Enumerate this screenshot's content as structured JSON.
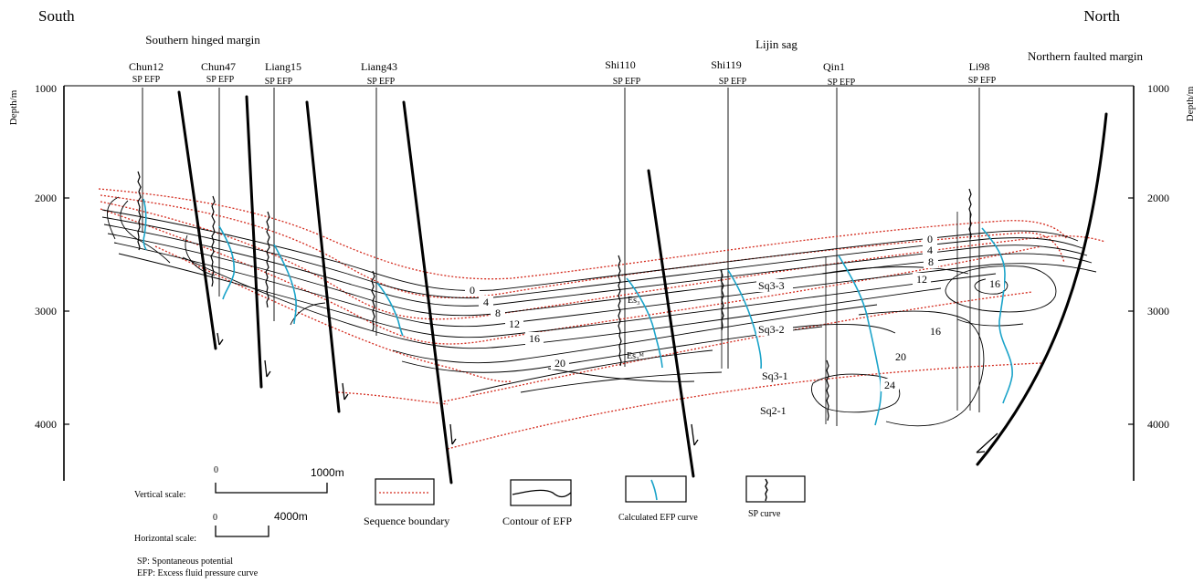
{
  "directions": {
    "left": "South",
    "right": "North"
  },
  "regions": {
    "southern": "Southern hinged margin",
    "lijin": "Lijin sag",
    "northern": "Northern faulted margin"
  },
  "wells": [
    {
      "name": "Chun12",
      "curves": "SP  EFP"
    },
    {
      "name": "Chun47",
      "curves": "SP  EFP"
    },
    {
      "name": "Liang15",
      "curves": "SP  EFP"
    },
    {
      "name": "Liang43",
      "curves": "SP  EFP"
    },
    {
      "name": "Shi110",
      "curves": "SP  EFP"
    },
    {
      "name": "Shi119",
      "curves": "SP  EFP"
    },
    {
      "name": "Qin1",
      "curves": "SP  EFP"
    },
    {
      "name": "Li98",
      "curves": "SP  EFP"
    }
  ],
  "axis": {
    "label": "Depth/m",
    "ticks": [
      "1000",
      "2000",
      "3000",
      "4000"
    ]
  },
  "contour_labels": [
    "0",
    "4",
    "8",
    "12",
    "16",
    "20",
    "0",
    "4",
    "8",
    "12",
    "16",
    "16",
    "20",
    "24"
  ],
  "sequences": [
    "Sq3-3",
    "Sq3-2",
    "Sq3-1",
    "Sq2-1"
  ],
  "formation_labels": [
    "Es₃",
    "Es₃ᴹ"
  ],
  "scales": {
    "vertical_label": "Vertical scale:",
    "vertical_zero": "0",
    "vertical_value": "1000m",
    "horizontal_label": "Horizontal scale:",
    "horizontal_zero": "0",
    "horizontal_value": "4000m"
  },
  "legend": {
    "sequence_boundary": "Sequence boundary",
    "contour": "Contour  of EFP",
    "calculated": "Calculated EFP curve",
    "sp": "SP curve"
  },
  "notes": [
    "SP: Spontaneous potential",
    "EFP: Excess  fluid pressure curve"
  ],
  "colors": {
    "boundary": "#d42b1e",
    "efp": "#1aa3c9",
    "line": "#000000"
  }
}
